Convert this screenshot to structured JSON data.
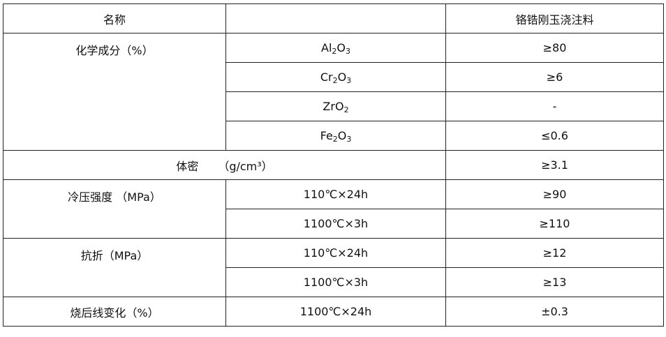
{
  "header": {
    "name": "名称",
    "blank": "",
    "product": "铬锆刚玉浇注料"
  },
  "chemical": {
    "label": "化学成分（%）",
    "rows": [
      {
        "el": "Al",
        "sub1": "2",
        "o": "O",
        "sub2": "3",
        "value": "≥80"
      },
      {
        "el": "Cr",
        "sub1": "2",
        "o": "O",
        "sub2": "3",
        "value": "≥6"
      },
      {
        "el": "Zr",
        "sub1": "",
        "o": "O",
        "sub2": "2",
        "value": "-"
      },
      {
        "el": "Fe",
        "sub1": "2",
        "o": "O",
        "sub2": "3",
        "value": "≤0.6"
      }
    ]
  },
  "density": {
    "label": "体密",
    "unit": "（g/cm³）",
    "value": "≥3.1"
  },
  "cold_strength": {
    "label": "冷压强度 （MPa）",
    "rows": [
      {
        "cond": "110℃×24h",
        "value": "≥90"
      },
      {
        "cond": "1100℃×3h",
        "value": "≥110"
      }
    ]
  },
  "flexural": {
    "label": "抗折（MPa）",
    "rows": [
      {
        "cond": "110℃×24h",
        "value": "≥12"
      },
      {
        "cond": "1100℃×3h",
        "value": "≥13"
      }
    ]
  },
  "linear_change": {
    "label": "烧后线变化（%）",
    "cond": "1100℃×24h",
    "value": "±0.3"
  }
}
